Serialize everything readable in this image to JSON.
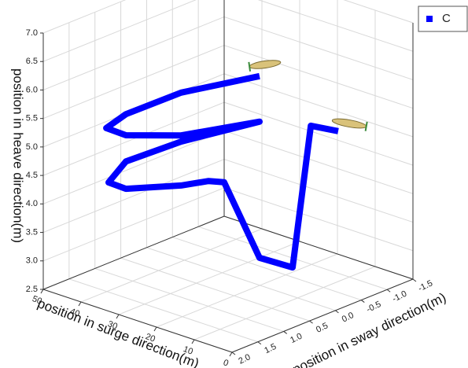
{
  "chart_data": {
    "type": "line3d",
    "xlabel": "position in surge direction(m)",
    "ylabel": "position in sway direction(m)",
    "zlabel": "position in heave direction(m)",
    "xlim": [
      0,
      50
    ],
    "xticks": [
      0,
      10,
      20,
      30,
      40,
      50
    ],
    "ylim": [
      -1.5,
      2.0
    ],
    "yticks": [
      -1.5,
      {
        "value": -1.0,
        "label": "-1.0"
      },
      -0.5,
      {
        "value": 0,
        "label": "0.0"
      },
      0.5,
      {
        "value": 1.0,
        "label": "1.0"
      },
      1.5,
      {
        "value": 2.0,
        "label": "2.0"
      }
    ],
    "zlim": [
      2.5,
      7.0
    ],
    "zticks": [
      2.5,
      {
        "value": 3.0,
        "label": "3.0"
      },
      3.5,
      {
        "value": 4.0,
        "label": "4.0"
      },
      4.5,
      {
        "value": 5.0,
        "label": "5.0"
      },
      5.5,
      {
        "value": 6.0,
        "label": "6.0"
      },
      6.5,
      {
        "value": 7.0,
        "label": "7.0"
      }
    ],
    "grid": true,
    "legend": "top-right",
    "series": [
      {
        "name": "C",
        "color": "#0000ff",
        "x": [
          6.4,
          27.2,
          41.8,
          47.0,
          41.8,
          27.2,
          6.4,
          27.2,
          41.8,
          46.4,
          41.8,
          27.2,
          19.9,
          15.8,
          6.4,
          4.5,
          6.5,
          6.1
        ],
        "y": [
          1,
          1,
          1,
          1,
          1,
          1,
          1,
          1,
          1,
          1,
          1,
          1,
          1,
          1,
          1,
          0.5,
          0,
          -0.5
        ],
        "z": [
          6.84,
          6.09,
          5.39,
          5.03,
          5.02,
          5.34,
          6.04,
          5.23,
          4.56,
          4.09,
          4.08,
          4.46,
          4.7,
          4.77,
          3.65,
          3.34,
          5.6,
          5.33
        ]
      }
    ]
  }
}
